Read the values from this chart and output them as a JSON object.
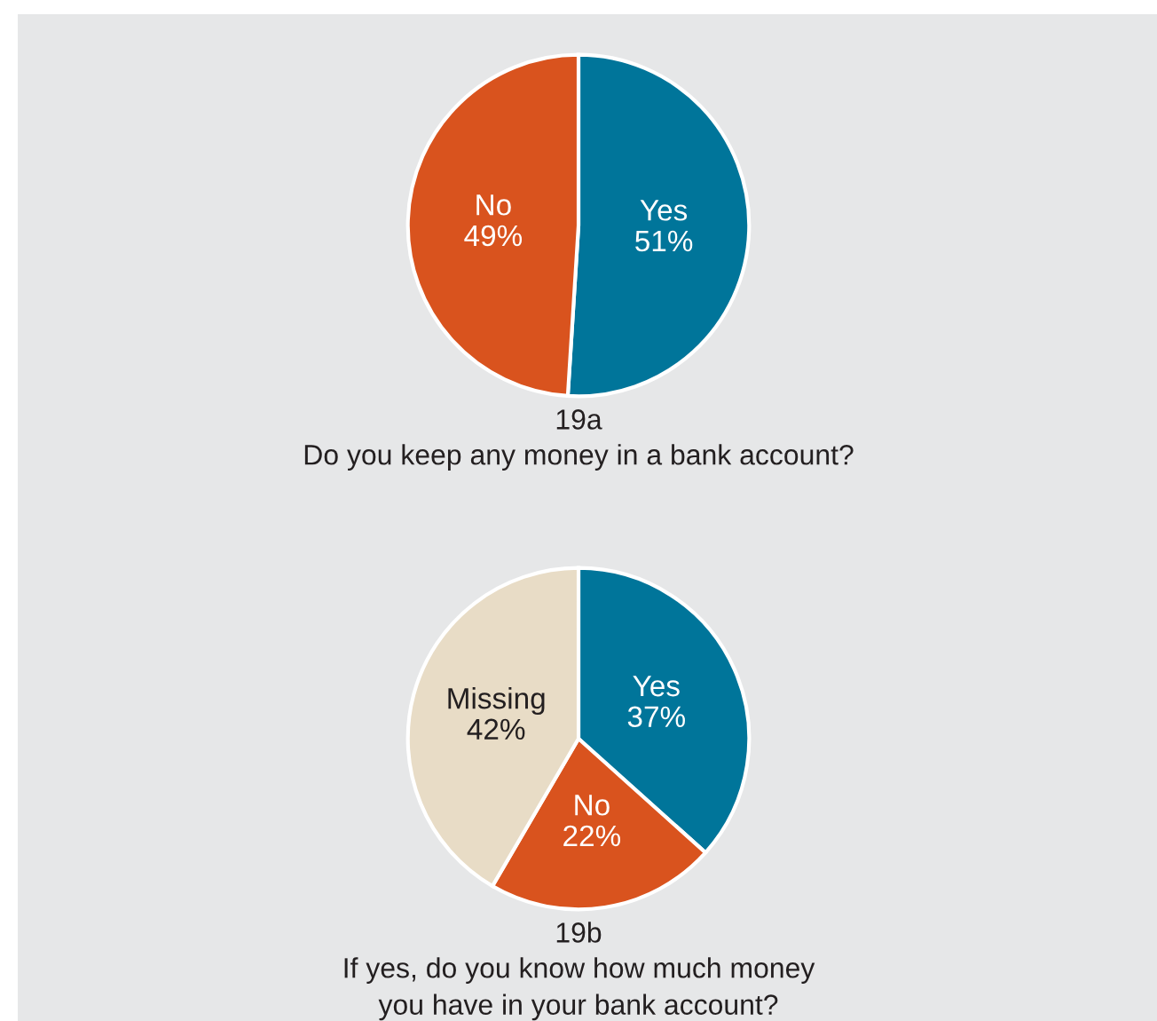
{
  "chart_data": [
    {
      "type": "pie",
      "title": "19a",
      "subtitle": "Do you keep any money in a bank account?",
      "categories": [
        "Yes",
        "No"
      ],
      "values": [
        51,
        49
      ],
      "value_labels": [
        "51%",
        "49%"
      ],
      "colors": [
        "#00759a",
        "#d9531e"
      ]
    },
    {
      "type": "pie",
      "title": "19b",
      "subtitle": "If yes, do you know how much money\nyou have in your bank account?",
      "categories": [
        "Yes",
        "No",
        "Missing"
      ],
      "values": [
        37,
        22,
        42
      ],
      "value_labels": [
        "37%",
        "22%",
        "42%"
      ],
      "colors": [
        "#00759a",
        "#d9531e",
        "#e8dcc6"
      ]
    }
  ]
}
